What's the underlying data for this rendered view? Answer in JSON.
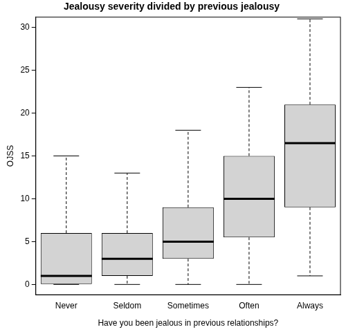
{
  "chart_data": {
    "type": "boxplot",
    "title": "Jealousy severity divided by previous jealousy",
    "x_label": "Have you been jealous in previous relationships?",
    "y_label": "OJSS",
    "categories": [
      "Never",
      "Seldom",
      "Sometimes",
      "Often",
      "Always"
    ],
    "whisker_low": [
      0,
      0,
      0,
      0,
      1
    ],
    "q1": [
      0,
      1,
      3,
      5.5,
      9
    ],
    "median": [
      1,
      3,
      5,
      10,
      16.5
    ],
    "q3": [
      6,
      6,
      9,
      15,
      21
    ],
    "whisker_high": [
      15,
      13,
      18,
      23,
      31
    ],
    "color": "#d3d3d3",
    "ylim": [
      -1.2,
      31.2
    ],
    "yticks": [
      0,
      5,
      10,
      15,
      20,
      25,
      30
    ],
    "grid": false
  }
}
